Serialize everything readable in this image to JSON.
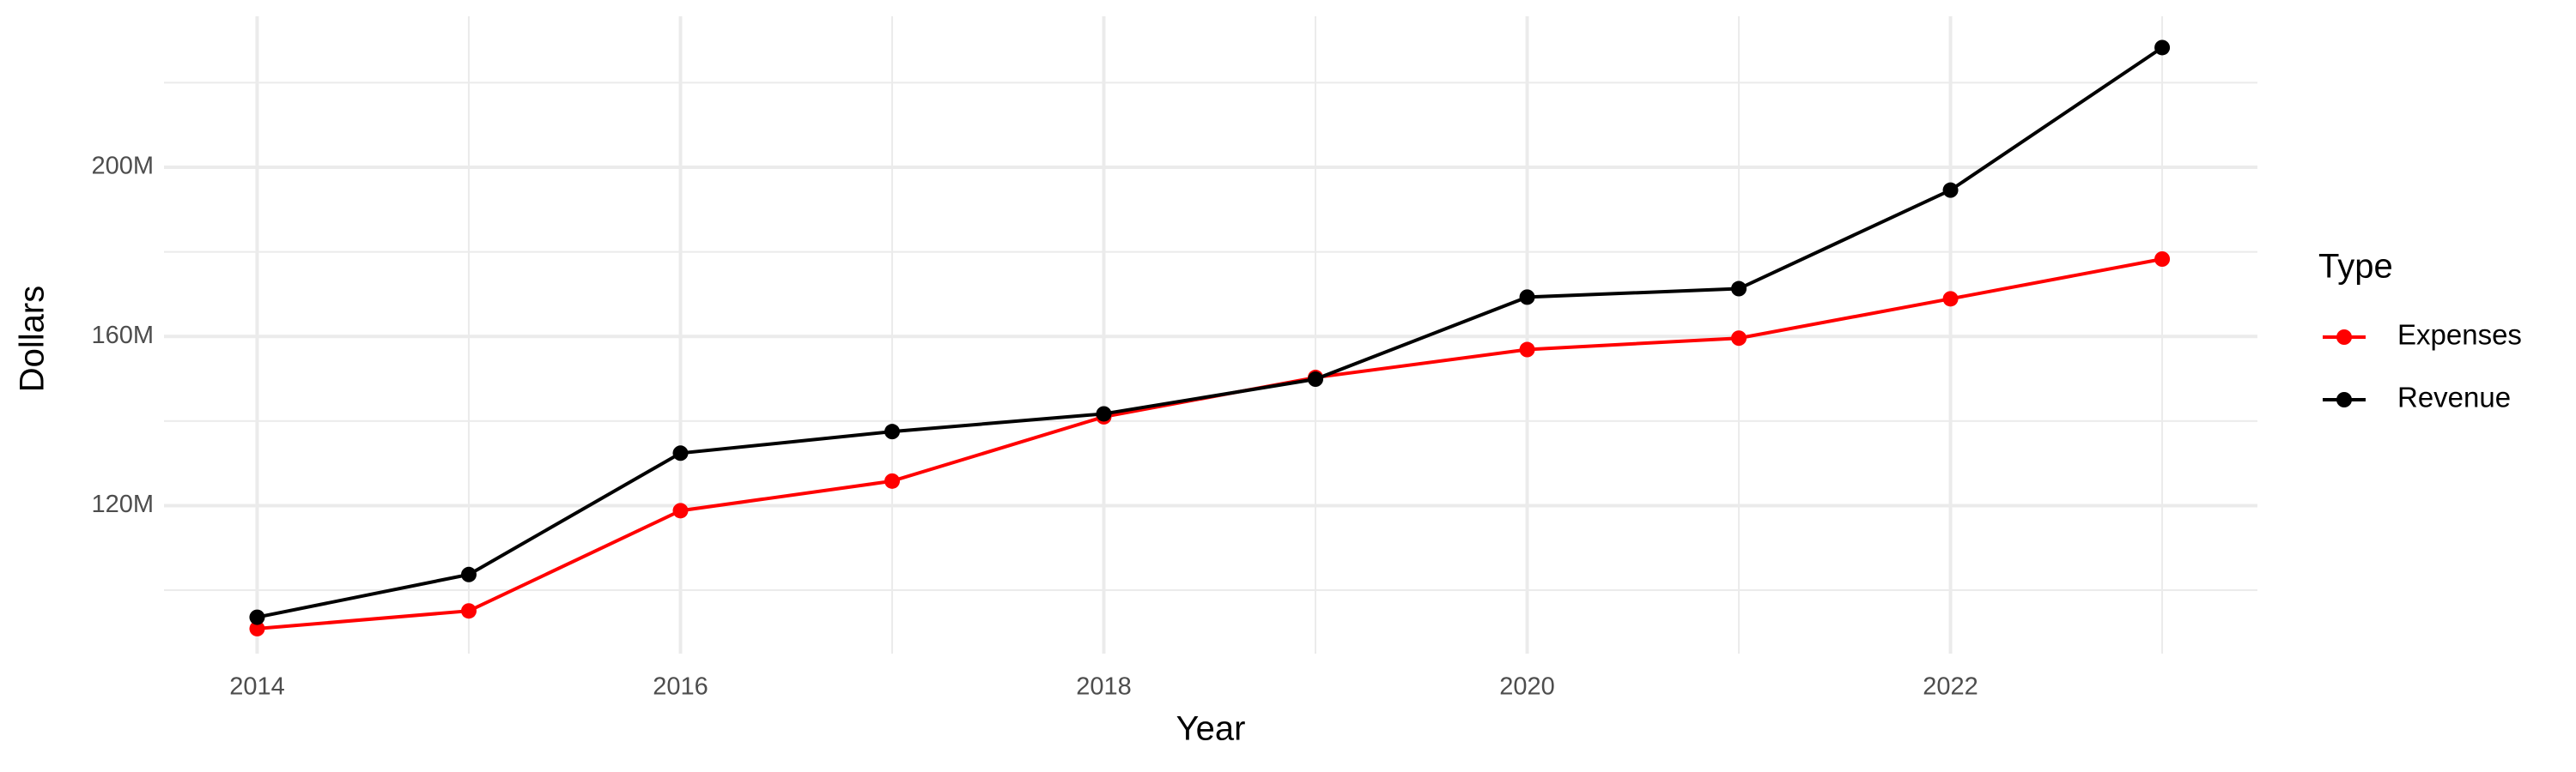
{
  "chart_data": {
    "type": "line",
    "x_label": "Year",
    "y_label": "Dollars",
    "legend_title": "Type",
    "x": [
      2014,
      2015,
      2016,
      2017,
      2018,
      2019,
      2020,
      2021,
      2022,
      2023
    ],
    "series": [
      {
        "name": "Expenses",
        "color": "#ff0000",
        "values": [
          90900000,
          95100000,
          118800000,
          125800000,
          141000000,
          150300000,
          156900000,
          159600000,
          168900000,
          178300000
        ]
      },
      {
        "name": "Revenue",
        "color": "#000000",
        "values": [
          93600000,
          103700000,
          132400000,
          137500000,
          141700000,
          149900000,
          169300000,
          171300000,
          194600000,
          228300000
        ]
      }
    ],
    "xlim": [
      2013.56,
      2023.45
    ],
    "xticks": [
      2014,
      2016,
      2018,
      2020,
      2022
    ],
    "ylim": [
      85000000,
      235700000
    ],
    "yticks": [
      {
        "value": 120000000,
        "label": "120M"
      },
      {
        "value": 160000000,
        "label": "160M"
      },
      {
        "value": 200000000,
        "label": "200M"
      }
    ],
    "grid": true,
    "legend": "right"
  }
}
